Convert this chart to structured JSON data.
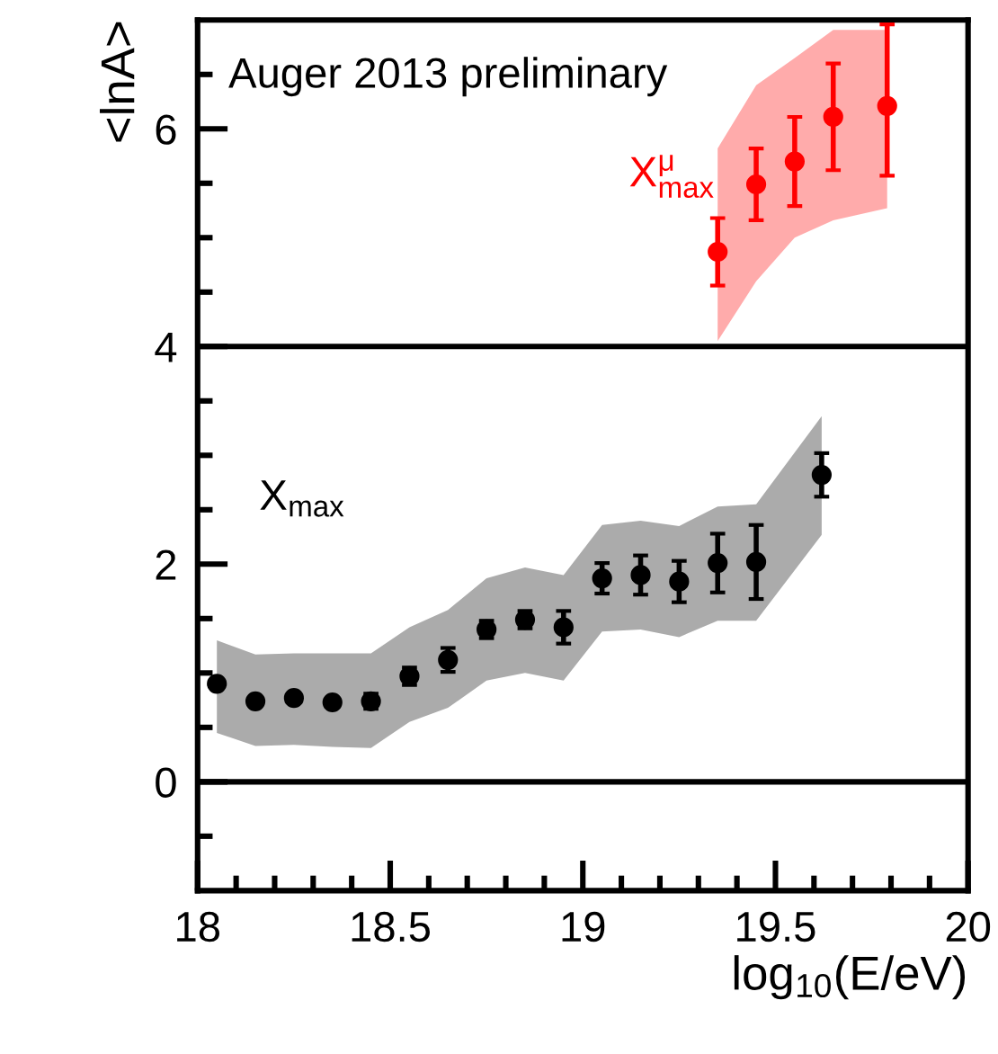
{
  "chart_data": {
    "type": "scatter",
    "xlabel": "log$_{10}$(E/eV)",
    "ylabel": "<lnA>",
    "annotations": [
      "Auger 2013 preliminary"
    ],
    "xlim": [
      18,
      20
    ],
    "ylim": [
      -1,
      7
    ],
    "xticks": [
      18,
      {
        "value": 18.1,
        "label": null
      },
      {
        "value": 18.2,
        "label": null
      },
      {
        "value": 18.3,
        "label": null
      },
      {
        "value": 18.4,
        "label": null
      },
      18.5,
      {
        "value": 18.6,
        "label": null
      },
      {
        "value": 18.7,
        "label": null
      },
      {
        "value": 18.8,
        "label": null
      },
      {
        "value": 18.9,
        "label": null
      },
      19,
      {
        "value": 19.1,
        "label": null
      },
      {
        "value": 19.2,
        "label": null
      },
      {
        "value": 19.3,
        "label": null
      },
      {
        "value": 19.4,
        "label": null
      },
      19.5,
      {
        "value": 19.6,
        "label": null
      },
      {
        "value": 19.7,
        "label": null
      },
      {
        "value": 19.8,
        "label": null
      },
      {
        "value": 19.9,
        "label": null
      },
      20
    ],
    "yticks": [
      {
        "value": -0.5,
        "label": null
      },
      0,
      {
        "value": 0.5,
        "label": null
      },
      {
        "value": 1,
        "label": null
      },
      {
        "value": 1.5,
        "label": null
      },
      2,
      {
        "value": 2.5,
        "label": null
      },
      {
        "value": 3,
        "label": null
      },
      {
        "value": 3.5,
        "label": null
      },
      4,
      {
        "value": 4.5,
        "label": null
      },
      {
        "value": 5,
        "label": null
      },
      {
        "value": 5.5,
        "label": null
      },
      6,
      {
        "value": 6.5,
        "label": null
      }
    ],
    "ref_lines": [
      {
        "axis": "y",
        "value": 0,
        "color": "#000000"
      },
      {
        "axis": "y",
        "value": 4,
        "color": "#000000"
      }
    ],
    "marker": "circle",
    "grid": false,
    "legend": false,
    "series": [
      {
        "name": "X$_{max}$",
        "color": "#000000",
        "x": [
          18.05,
          18.15,
          18.25,
          18.35,
          18.45,
          18.55,
          18.65,
          18.75,
          18.85,
          18.95,
          19.05,
          19.15,
          19.25,
          19.35,
          19.45,
          19.62
        ],
        "values": [
          0.9,
          0.74,
          0.77,
          0.73,
          0.74,
          0.97,
          1.12,
          1.4,
          1.49,
          1.42,
          1.87,
          1.9,
          1.84,
          2.01,
          2.02,
          2.82
        ],
        "errors": [
          null,
          null,
          null,
          null,
          0.07,
          0.08,
          0.11,
          0.08,
          0.08,
          0.15,
          0.14,
          0.18,
          0.19,
          0.27,
          0.34,
          0.2
        ],
        "lower": [
          0.45,
          0.33,
          0.34,
          0.32,
          0.31,
          0.55,
          0.68,
          0.93,
          1.0,
          0.93,
          1.38,
          1.4,
          1.33,
          1.48,
          1.48,
          2.27
        ],
        "upper": [
          1.3,
          1.17,
          1.18,
          1.18,
          1.18,
          1.42,
          1.58,
          1.87,
          1.97,
          1.9,
          2.36,
          2.4,
          2.35,
          2.53,
          2.55,
          3.36
        ]
      },
      {
        "name": "X$^{μ}$$_{max}$",
        "color": "#ff0000",
        "x": [
          19.35,
          19.45,
          19.55,
          19.65,
          19.79
        ],
        "values": [
          4.87,
          5.49,
          5.7,
          6.11,
          6.21
        ],
        "errors": [
          0.31,
          0.33,
          0.41,
          0.49,
          [
            5.57,
            6.96
          ]
        ],
        "lower": [
          4.05,
          4.6,
          5.0,
          5.16,
          5.27
        ],
        "upper": [
          5.82,
          6.4,
          6.65,
          6.91,
          6.91
        ]
      }
    ]
  }
}
